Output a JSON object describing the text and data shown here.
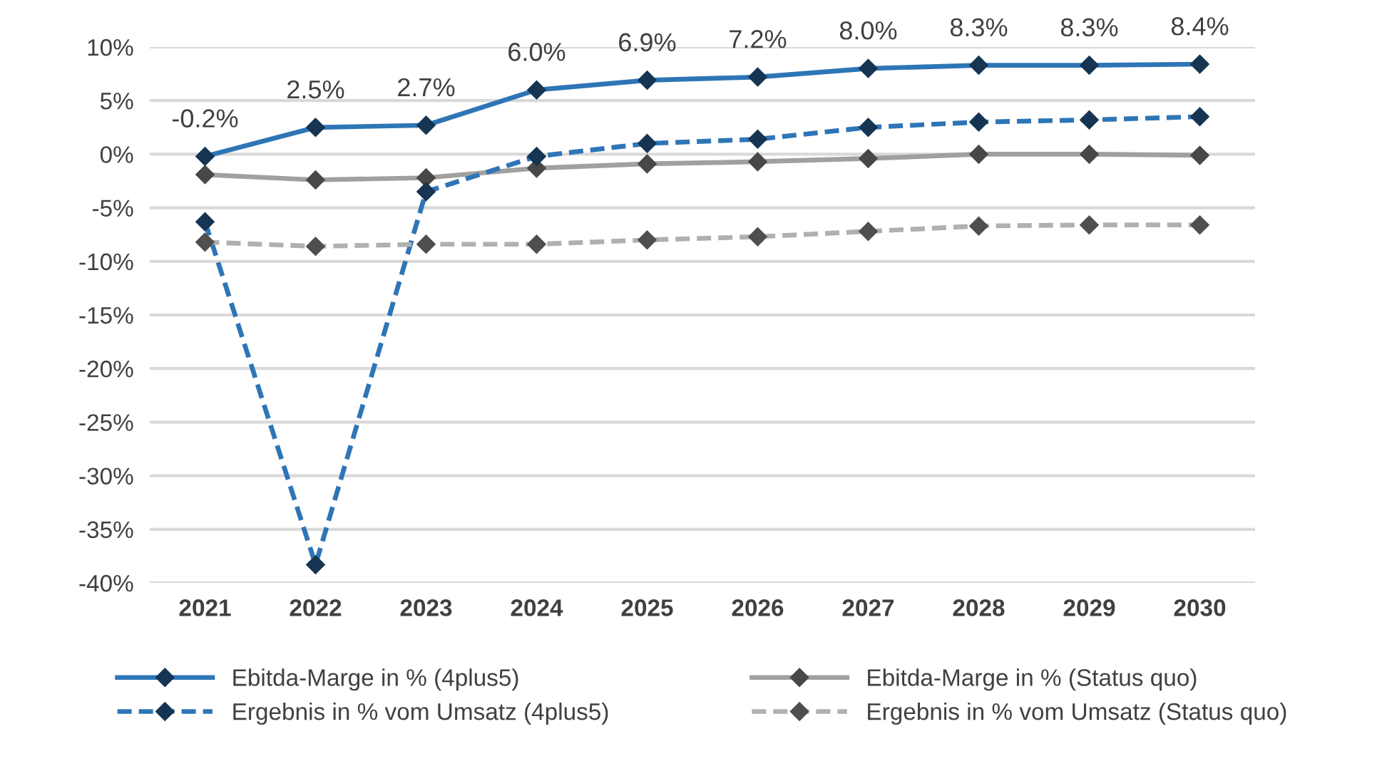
{
  "chart_data": {
    "type": "line",
    "categories": [
      "2021",
      "2022",
      "2023",
      "2024",
      "2025",
      "2026",
      "2027",
      "2028",
      "2029",
      "2030"
    ],
    "series": [
      {
        "name": "Ebitda-Marge in % (4plus5)",
        "color": "#2e75b6",
        "line_style": "solid",
        "values": [
          -0.2,
          2.5,
          2.7,
          6.0,
          6.9,
          7.2,
          8.0,
          8.3,
          8.3,
          8.4
        ],
        "value_labels": [
          "-0.2%",
          "2.5%",
          "2.7%",
          "6.0%",
          "6.9%",
          "7.2%",
          "8.0%",
          "8.3%",
          "8.3%",
          "8.4%"
        ]
      },
      {
        "name": "Ebitda-Marge in % (Status quo)",
        "color": "#a0a0a0",
        "line_style": "solid",
        "values": [
          -1.9,
          -2.4,
          -2.2,
          -1.3,
          -0.9,
          -0.7,
          -0.4,
          0.0,
          0.0,
          -0.1
        ]
      },
      {
        "name": "Ergebnis in % vom Umsatz (4plus5)",
        "color": "#2e75b6",
        "line_style": "dashed",
        "values": [
          -6.3,
          -38.3,
          -3.5,
          -0.2,
          1.0,
          1.4,
          2.5,
          3.0,
          3.2,
          3.5
        ]
      },
      {
        "name": "Ergebnis in % vom Umsatz (Status quo)",
        "color": "#b0b0b0",
        "line_style": "dashed",
        "values": [
          -8.2,
          -8.6,
          -8.4,
          -8.4,
          -8.0,
          -7.7,
          -7.2,
          -6.7,
          -6.6,
          -6.6
        ]
      }
    ],
    "ylim": [
      -40,
      10
    ],
    "yticks": [
      {
        "value": -40,
        "label": "-40%"
      },
      {
        "value": -35,
        "label": "-35%"
      },
      {
        "value": -30,
        "label": "-30%"
      },
      {
        "value": -25,
        "label": "-25%"
      },
      {
        "value": -20,
        "label": "-20%"
      },
      {
        "value": -15,
        "label": "-15%"
      },
      {
        "value": -10,
        "label": "-10%"
      },
      {
        "value": -5,
        "label": "-5%"
      },
      {
        "value": 0,
        "label": "0%"
      },
      {
        "value": 5,
        "label": "5%"
      },
      {
        "value": 10,
        "label": "10%"
      }
    ],
    "grid": "y",
    "legend": "bottom",
    "marker": "diamond"
  }
}
